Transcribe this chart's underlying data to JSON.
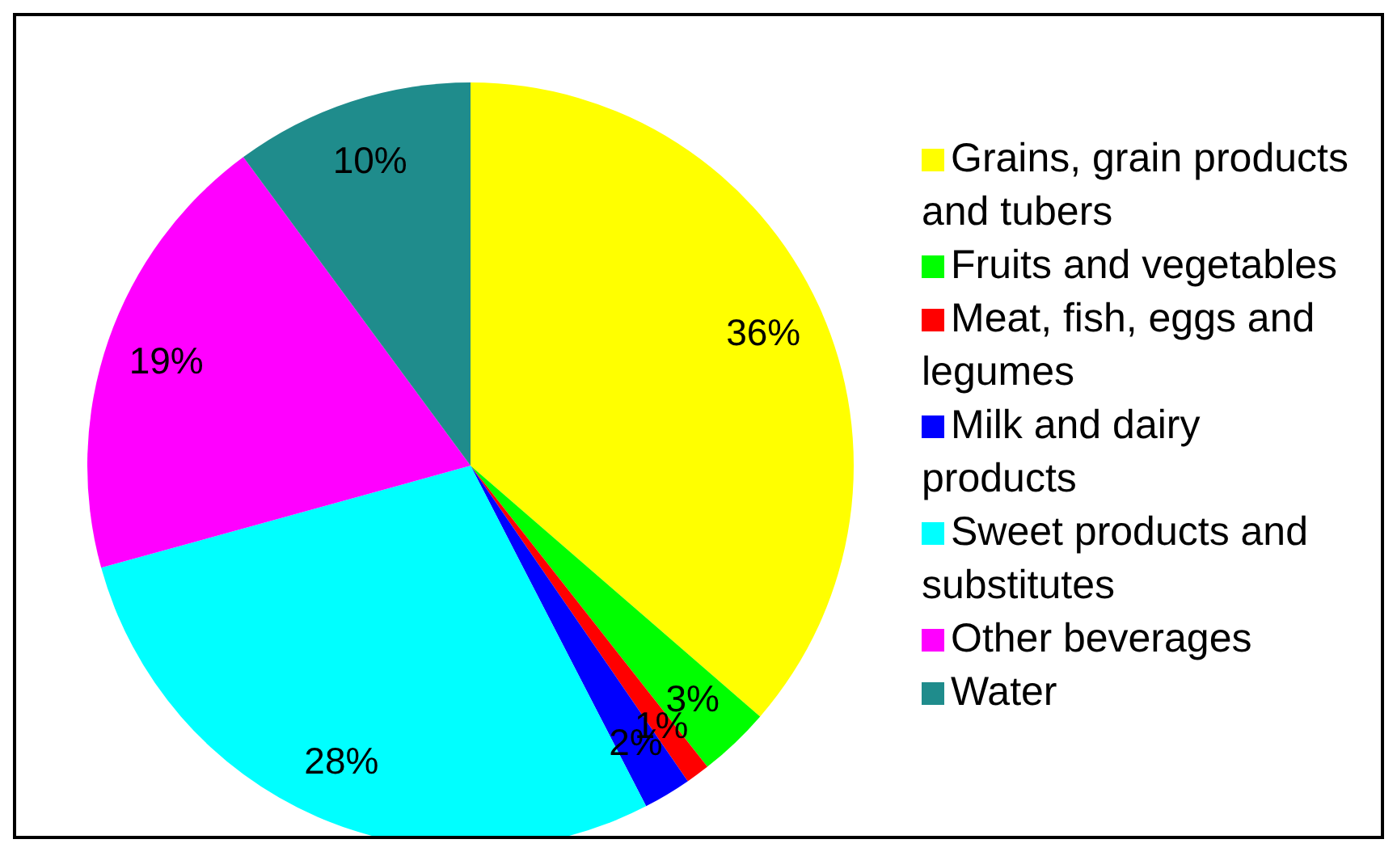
{
  "chart_data": {
    "type": "pie",
    "categories": [
      "Grains, grain products and tubers",
      "Fruits and vegetables",
      "Meat, fish, eggs and legumes",
      "Milk and dairy products",
      "Sweet products and substitutes",
      "Other beverages",
      "Water"
    ],
    "values": [
      36,
      3,
      1,
      2,
      28,
      19,
      10
    ],
    "colors": [
      "#ffff00",
      "#00ff00",
      "#ff0000",
      "#0000ff",
      "#00ffff",
      "#ff00ff",
      "#1f8c8c"
    ],
    "value_labels": [
      "36%",
      "3%",
      "1%",
      "2%",
      "28%",
      "19%",
      "10%"
    ],
    "legend": "right"
  }
}
